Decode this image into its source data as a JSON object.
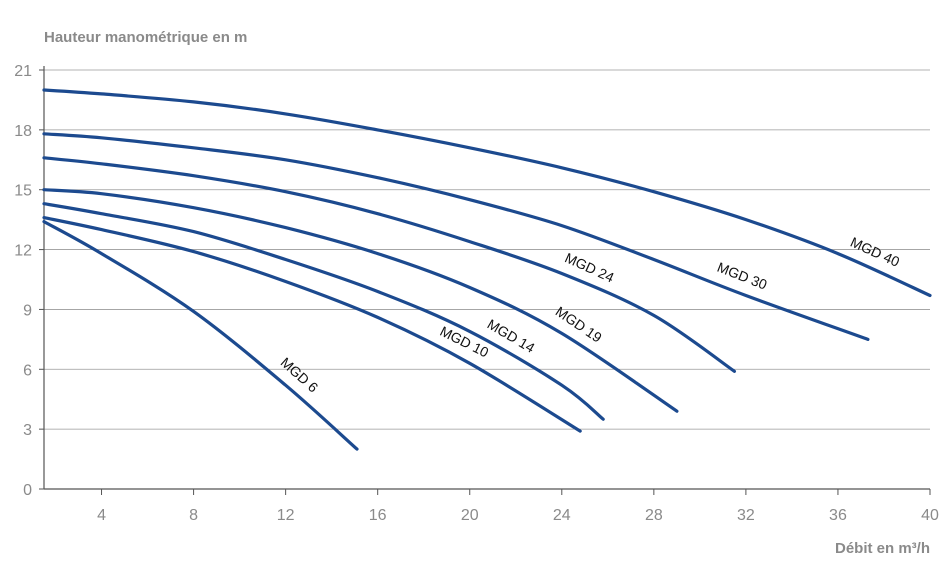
{
  "chart_data": {
    "type": "line",
    "title": "",
    "ylabel": "Hauteur manométrique en m",
    "xlabel": "Débit en m³/h",
    "xlim": [
      1.5,
      40
    ],
    "ylim": [
      0,
      21
    ],
    "x_ticks": [
      4,
      8,
      12,
      16,
      20,
      24,
      28,
      32,
      36,
      40
    ],
    "y_ticks": [
      0,
      3,
      6,
      9,
      12,
      15,
      18,
      21
    ],
    "grid": "horizontal",
    "legend": "none (inline labels)",
    "line_color": "#1c4a8f",
    "series": [
      {
        "name": "MGD 6",
        "x": [
          1.5,
          4,
          8,
          12,
          15.1
        ],
        "y": [
          13.4,
          11.8,
          8.9,
          5.2,
          2.0
        ]
      },
      {
        "name": "MGD 10",
        "x": [
          1.5,
          4,
          8,
          12,
          16,
          20,
          24.8
        ],
        "y": [
          13.6,
          13.0,
          11.9,
          10.4,
          8.6,
          6.3,
          2.9
        ]
      },
      {
        "name": "MGD 14",
        "x": [
          1.5,
          4,
          8,
          12,
          16,
          20,
          24,
          25.8
        ],
        "y": [
          14.3,
          13.8,
          12.9,
          11.5,
          9.9,
          7.9,
          5.2,
          3.5
        ]
      },
      {
        "name": "MGD 19",
        "x": [
          1.5,
          4,
          8,
          12,
          16,
          20,
          24,
          29
        ],
        "y": [
          15.0,
          14.8,
          14.1,
          13.1,
          11.8,
          10.1,
          7.8,
          3.9
        ]
      },
      {
        "name": "MGD 24",
        "x": [
          1.5,
          4,
          8,
          12,
          16,
          20,
          24,
          28,
          31.5
        ],
        "y": [
          16.6,
          16.3,
          15.7,
          14.9,
          13.8,
          12.4,
          10.8,
          8.7,
          5.9
        ]
      },
      {
        "name": "MGD 30",
        "x": [
          1.5,
          4,
          8,
          12,
          16,
          20,
          24,
          28,
          32,
          37.3
        ],
        "y": [
          17.8,
          17.6,
          17.1,
          16.5,
          15.6,
          14.5,
          13.2,
          11.5,
          9.7,
          7.5
        ]
      },
      {
        "name": "MGD 40",
        "x": [
          1.5,
          4,
          8,
          12,
          16,
          20,
          24,
          28,
          32,
          36,
          40
        ],
        "y": [
          20.0,
          19.8,
          19.4,
          18.8,
          18.0,
          17.1,
          16.1,
          14.9,
          13.5,
          11.8,
          9.7
        ]
      }
    ]
  }
}
